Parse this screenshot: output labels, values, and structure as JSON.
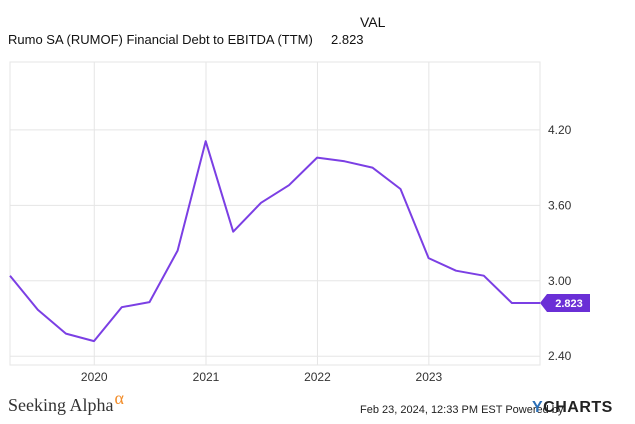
{
  "legend": {
    "column_header": "VAL",
    "series_name": "Rumo SA (RUMOF) Financial Debt to EBITDA (TTM)",
    "latest_value": "2.823"
  },
  "footer": {
    "brand_left": "Seeking Alpha",
    "brand_left_symbol": "α",
    "timestamp": "Feb 23, 2024, 12:33 PM EST Powered by",
    "brand_right_y": "Y",
    "brand_right_rest": "CHARTS"
  },
  "colors": {
    "line": "#7b3fe4",
    "grid": "#e5e5e5",
    "label_bg": "#6a2fd6"
  },
  "chart_data": {
    "type": "line",
    "title": "Rumo SA (RUMOF) Financial Debt to EBITDA (TTM)",
    "xlabel": "",
    "ylabel": "",
    "x_tick_labels": [
      "2020",
      "2021",
      "2022",
      "2023"
    ],
    "y_tick_labels": [
      "2.40",
      "3.00",
      "3.60",
      "4.20"
    ],
    "ylim": [
      2.33,
      4.74
    ],
    "xlim": [
      "2019-03-31",
      "2023-12-31"
    ],
    "grid": true,
    "end_label": "2.823",
    "series": [
      {
        "name": "Rumo SA (RUMOF) Financial Debt to EBITDA (TTM)",
        "x": [
          "2019-03-31",
          "2019-06-30",
          "2019-09-30",
          "2019-12-31",
          "2020-03-31",
          "2020-06-30",
          "2020-09-30",
          "2020-12-31",
          "2021-03-31",
          "2021-06-30",
          "2021-09-30",
          "2021-12-31",
          "2022-03-31",
          "2022-06-30",
          "2022-09-30",
          "2022-12-31",
          "2023-03-31",
          "2023-06-30",
          "2023-09-30",
          "2023-12-31"
        ],
        "values": [
          3.04,
          2.77,
          2.58,
          2.52,
          2.79,
          2.83,
          3.24,
          4.11,
          3.39,
          3.62,
          3.76,
          3.98,
          3.95,
          3.9,
          3.73,
          3.18,
          3.08,
          3.04,
          2.823,
          2.823
        ]
      }
    ]
  }
}
